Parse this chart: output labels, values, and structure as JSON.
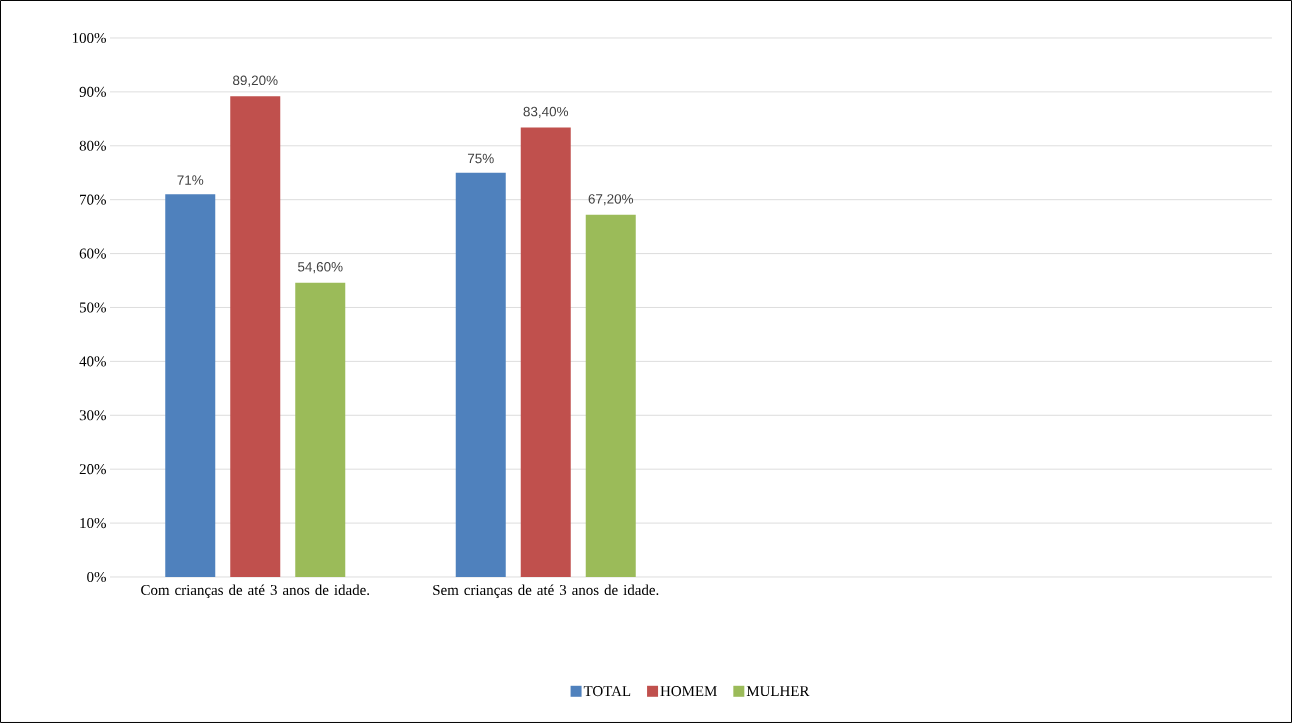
{
  "chart_data": {
    "type": "bar",
    "categories": [
      "Com crianças de até 3 anos de idade.",
      "Sem crianças de até 3 anos de idade.",
      null,
      null
    ],
    "series": [
      {
        "name": "TOTAL",
        "color": "#4f81bd",
        "values": [
          71,
          75,
          null,
          null
        ],
        "value_labels": [
          "71%",
          "75%",
          null,
          null
        ]
      },
      {
        "name": "HOMEM",
        "color": "#c0504d",
        "values": [
          89.2,
          83.4,
          null,
          null
        ],
        "value_labels": [
          "89,20%",
          "83,40%",
          null,
          null
        ]
      },
      {
        "name": "MULHER",
        "color": "#9bbb59",
        "values": [
          54.6,
          67.2,
          null,
          null
        ],
        "value_labels": [
          "54,60%",
          "67,20%",
          null,
          null
        ]
      }
    ],
    "ylim": [
      0,
      100
    ],
    "yticks": [
      {
        "value": 0,
        "label": "0%"
      },
      {
        "value": 10,
        "label": "10%"
      },
      {
        "value": 20,
        "label": "20%"
      },
      {
        "value": 30,
        "label": "30%"
      },
      {
        "value": 40,
        "label": "40%"
      },
      {
        "value": 50,
        "label": "50%"
      },
      {
        "value": 60,
        "label": "60%"
      },
      {
        "value": 70,
        "label": "70%"
      },
      {
        "value": 80,
        "label": "80%"
      },
      {
        "value": 90,
        "label": "90%"
      },
      {
        "value": 100,
        "label": "100%"
      }
    ],
    "grid": "y",
    "legend": "bottom"
  }
}
